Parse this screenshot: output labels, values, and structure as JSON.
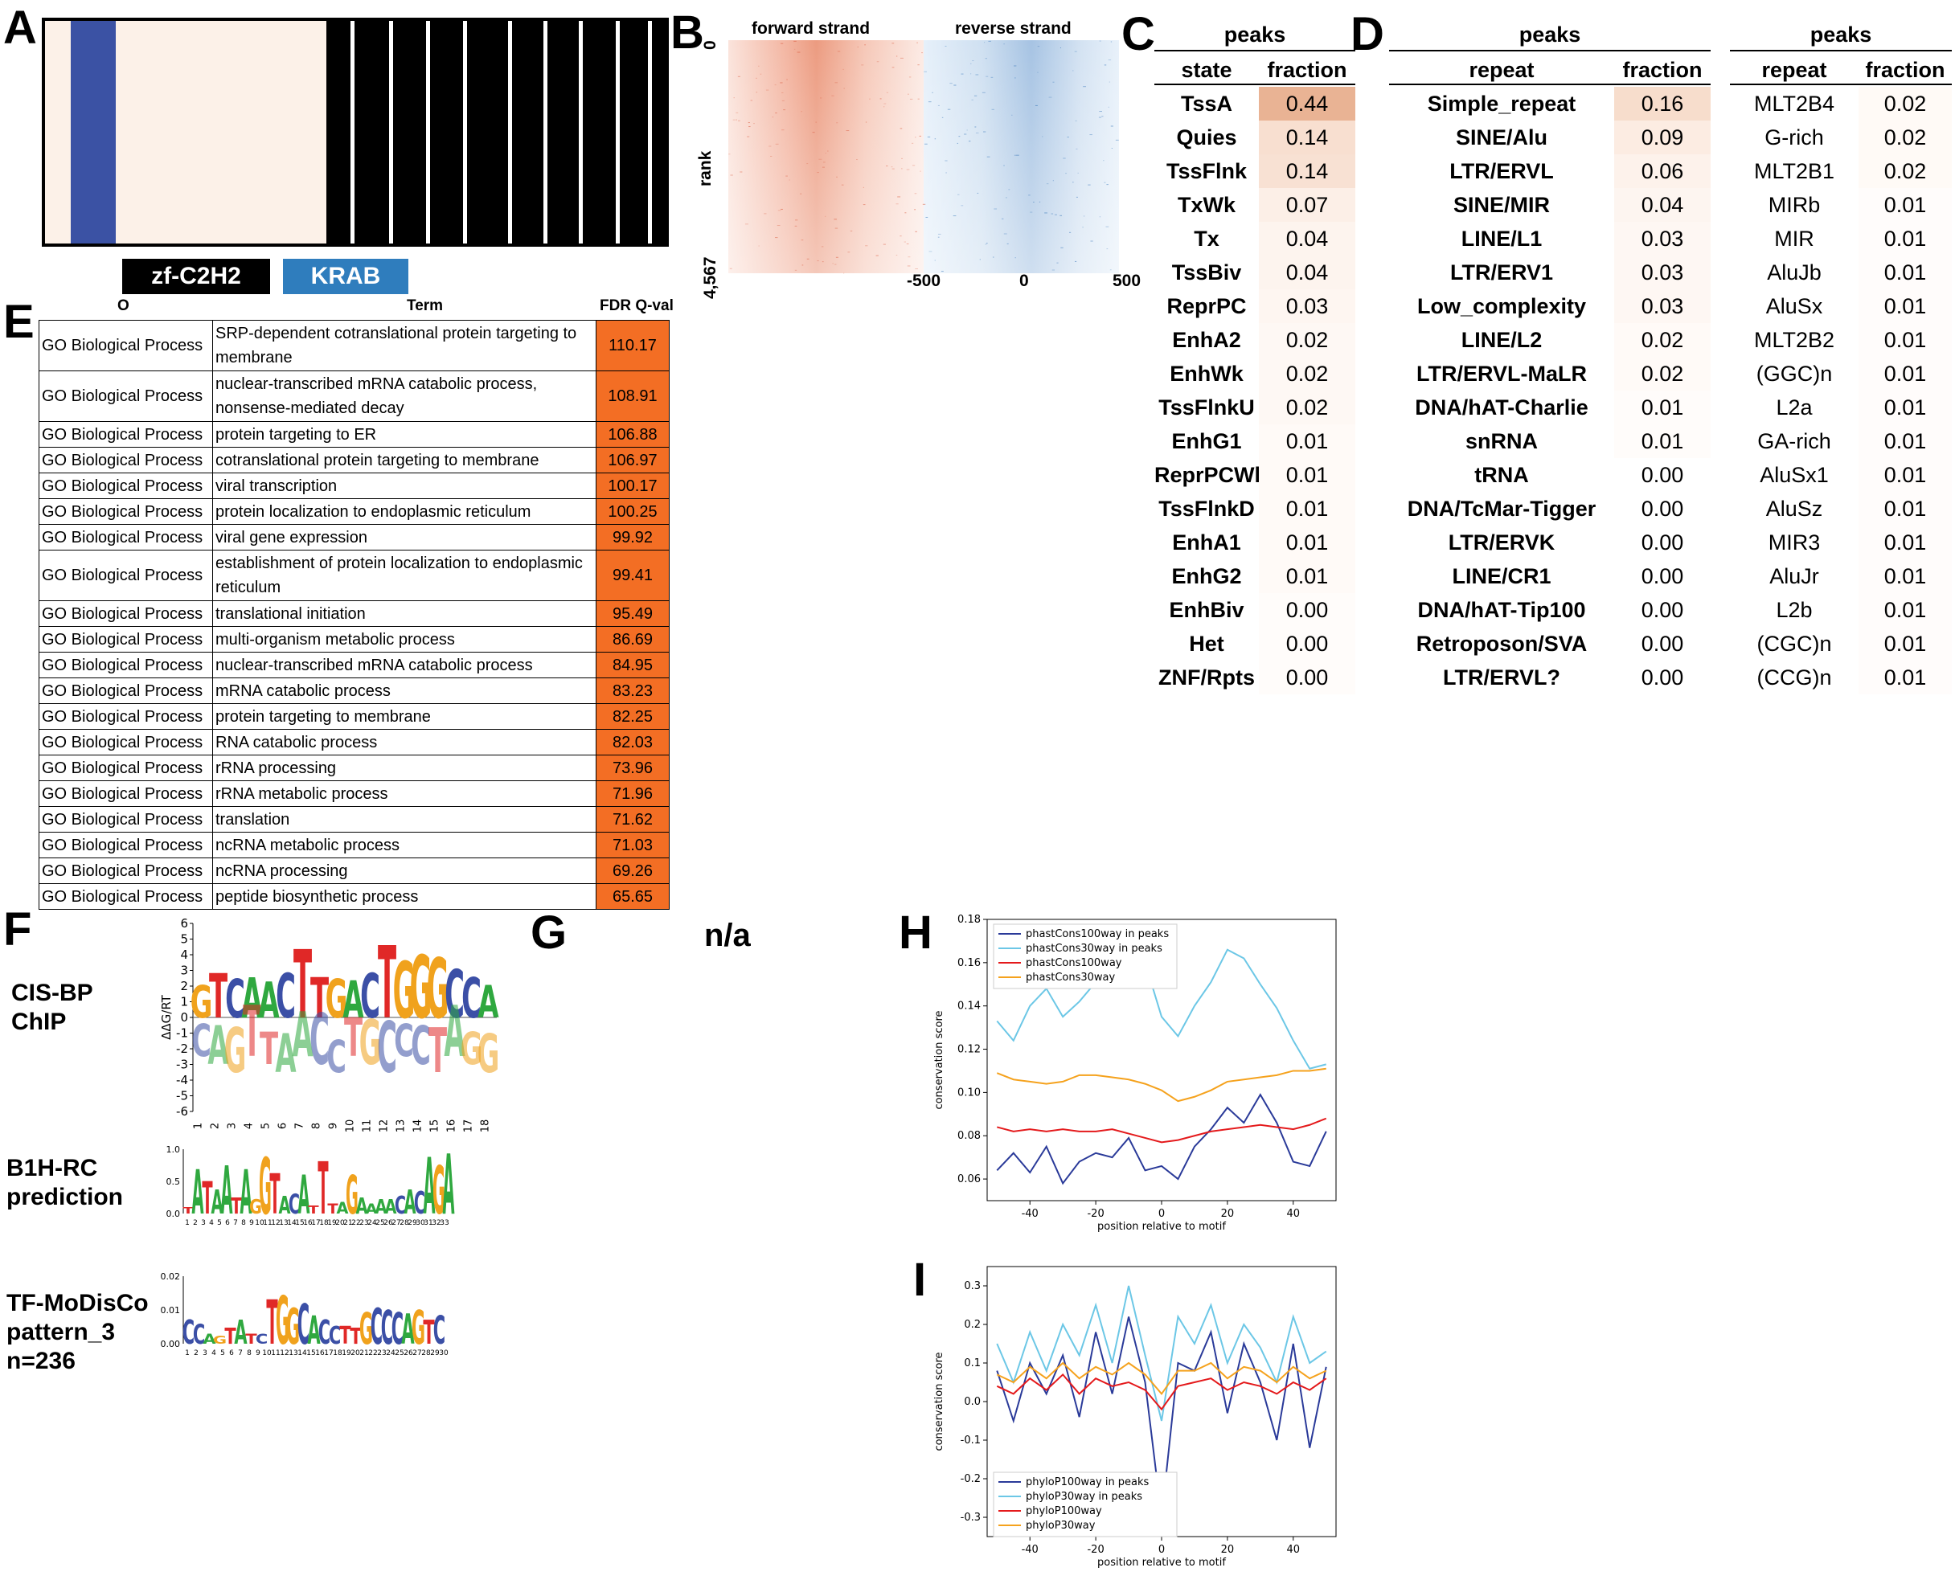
{
  "panel_labels": {
    "A": "A",
    "B": "B",
    "C": "C",
    "D": "D",
    "E": "E",
    "F": "F",
    "G": "G",
    "H": "H",
    "I": "I"
  },
  "panel_a": {
    "domains": [
      {
        "label": "zf-C2H2",
        "color": "#000000"
      },
      {
        "label": "KRAB",
        "color": "#2f7dbd"
      }
    ],
    "colors": {
      "background": "#fcf1e8",
      "krab_band": "#3b52a4",
      "zf_block": "#000000",
      "zf_separator": "#ffffff"
    }
  },
  "panel_b": {
    "headers": [
      "forward strand",
      "reverse strand"
    ],
    "y_label": "rank",
    "y_ticks": [
      "0",
      "4,567"
    ],
    "x_ticks": [
      "-500",
      "0",
      "500"
    ],
    "colors": {
      "forward": "#e3572f",
      "reverse": "#2e6fb5"
    }
  },
  "panel_c": {
    "title": "peaks",
    "columns": [
      "state",
      "fraction"
    ],
    "rows": [
      {
        "state": "TssA",
        "fraction": "0.44"
      },
      {
        "state": "Quies",
        "fraction": "0.14"
      },
      {
        "state": "TssFlnk",
        "fraction": "0.14"
      },
      {
        "state": "TxWk",
        "fraction": "0.07"
      },
      {
        "state": "Tx",
        "fraction": "0.04"
      },
      {
        "state": "TssBiv",
        "fraction": "0.04"
      },
      {
        "state": "ReprPC",
        "fraction": "0.03"
      },
      {
        "state": "EnhA2",
        "fraction": "0.02"
      },
      {
        "state": "EnhWk",
        "fraction": "0.02"
      },
      {
        "state": "TssFlnkU",
        "fraction": "0.02"
      },
      {
        "state": "EnhG1",
        "fraction": "0.01"
      },
      {
        "state": "ReprPCWk",
        "fraction": "0.01"
      },
      {
        "state": "TssFlnkD",
        "fraction": "0.01"
      },
      {
        "state": "EnhA1",
        "fraction": "0.01"
      },
      {
        "state": "EnhG2",
        "fraction": "0.01"
      },
      {
        "state": "EnhBiv",
        "fraction": "0.00"
      },
      {
        "state": "Het",
        "fraction": "0.00"
      },
      {
        "state": "ZNF/Rpts",
        "fraction": "0.00"
      }
    ]
  },
  "panel_d": {
    "title_left": "peaks",
    "title_right": "peaks",
    "columns": [
      "repeat",
      "fraction"
    ],
    "left_rows": [
      {
        "repeat": "Simple_repeat",
        "fraction": "0.16"
      },
      {
        "repeat": "SINE/Alu",
        "fraction": "0.09"
      },
      {
        "repeat": "LTR/ERVL",
        "fraction": "0.06"
      },
      {
        "repeat": "SINE/MIR",
        "fraction": "0.04"
      },
      {
        "repeat": "LINE/L1",
        "fraction": "0.03"
      },
      {
        "repeat": "LTR/ERV1",
        "fraction": "0.03"
      },
      {
        "repeat": "Low_complexity",
        "fraction": "0.03"
      },
      {
        "repeat": "LINE/L2",
        "fraction": "0.02"
      },
      {
        "repeat": "LTR/ERVL-MaLR",
        "fraction": "0.02"
      },
      {
        "repeat": "DNA/hAT-Charlie",
        "fraction": "0.01"
      },
      {
        "repeat": "snRNA",
        "fraction": "0.01"
      },
      {
        "repeat": "tRNA",
        "fraction": "0.00"
      },
      {
        "repeat": "DNA/TcMar-Tigger",
        "fraction": "0.00"
      },
      {
        "repeat": "LTR/ERVK",
        "fraction": "0.00"
      },
      {
        "repeat": "LINE/CR1",
        "fraction": "0.00"
      },
      {
        "repeat": "DNA/hAT-Tip100",
        "fraction": "0.00"
      },
      {
        "repeat": "Retroposon/SVA",
        "fraction": "0.00"
      },
      {
        "repeat": "LTR/ERVL?",
        "fraction": "0.00"
      }
    ],
    "right_rows": [
      {
        "repeat": "MLT2B4",
        "fraction": "0.02"
      },
      {
        "repeat": "G-rich",
        "fraction": "0.02"
      },
      {
        "repeat": "MLT2B1",
        "fraction": "0.02"
      },
      {
        "repeat": "MIRb",
        "fraction": "0.01"
      },
      {
        "repeat": "MIR",
        "fraction": "0.01"
      },
      {
        "repeat": "AluJb",
        "fraction": "0.01"
      },
      {
        "repeat": "AluSx",
        "fraction": "0.01"
      },
      {
        "repeat": "MLT2B2",
        "fraction": "0.01"
      },
      {
        "repeat": "(GGC)n",
        "fraction": "0.01"
      },
      {
        "repeat": "L2a",
        "fraction": "0.01"
      },
      {
        "repeat": "GA-rich",
        "fraction": "0.01"
      },
      {
        "repeat": "AluSx1",
        "fraction": "0.01"
      },
      {
        "repeat": "AluSz",
        "fraction": "0.01"
      },
      {
        "repeat": "MIR3",
        "fraction": "0.01"
      },
      {
        "repeat": "AluJr",
        "fraction": "0.01"
      },
      {
        "repeat": "L2b",
        "fraction": "0.01"
      },
      {
        "repeat": "(CGC)n",
        "fraction": "0.01"
      },
      {
        "repeat": "(CCG)n",
        "fraction": "0.01"
      }
    ]
  },
  "panel_e": {
    "headers": [
      "O",
      "Term",
      "FDR Q-val"
    ],
    "rows": [
      {
        "source": "GO Biological Process",
        "term": "SRP-dependent cotranslational protein targeting to membrane",
        "q": "110.17"
      },
      {
        "source": "GO Biological Process",
        "term": "nuclear-transcribed mRNA catabolic process, nonsense-mediated decay",
        "q": "108.91"
      },
      {
        "source": "GO Biological Process",
        "term": "protein targeting to ER",
        "q": "106.88"
      },
      {
        "source": "GO Biological Process",
        "term": "cotranslational protein targeting to membrane",
        "q": "106.97"
      },
      {
        "source": "GO Biological Process",
        "term": "viral transcription",
        "q": "100.17"
      },
      {
        "source": "GO Biological Process",
        "term": "protein localization to endoplasmic reticulum",
        "q": "100.25"
      },
      {
        "source": "GO Biological Process",
        "term": "viral gene expression",
        "q": "99.92"
      },
      {
        "source": "GO Biological Process",
        "term": "establishment of protein localization to endoplasmic reticulum",
        "q": "99.41"
      },
      {
        "source": "GO Biological Process",
        "term": "translational initiation",
        "q": "95.49"
      },
      {
        "source": "GO Biological Process",
        "term": "multi-organism metabolic process",
        "q": "86.69"
      },
      {
        "source": "GO Biological Process",
        "term": "nuclear-transcribed mRNA catabolic process",
        "q": "84.95"
      },
      {
        "source": "GO Biological Process",
        "term": "mRNA catabolic process",
        "q": "83.23"
      },
      {
        "source": "GO Biological Process",
        "term": "protein targeting to membrane",
        "q": "82.25"
      },
      {
        "source": "GO Biological Process",
        "term": "RNA catabolic process",
        "q": "82.03"
      },
      {
        "source": "GO Biological Process",
        "term": "rRNA processing",
        "q": "73.96"
      },
      {
        "source": "GO Biological Process",
        "term": "rRNA metabolic process",
        "q": "71.96"
      },
      {
        "source": "GO Biological Process",
        "term": "translation",
        "q": "71.62"
      },
      {
        "source": "GO Biological Process",
        "term": "ncRNA metabolic process",
        "q": "71.03"
      },
      {
        "source": "GO Biological Process",
        "term": "ncRNA processing",
        "q": "69.26"
      },
      {
        "source": "GO Biological Process",
        "term": "peptide biosynthetic process",
        "q": "65.65"
      }
    ]
  },
  "panel_f": {
    "motifs": [
      {
        "label_lines": [
          "CIS-BP",
          "ChIP"
        ],
        "y_label": "ΔΔG/RT",
        "y_ticks": [
          "6",
          "5",
          "4",
          "3",
          "2",
          "1",
          "0",
          "-1",
          "-2",
          "-3",
          "-4",
          "-5",
          "-6"
        ],
        "x_ticks": [
          "1",
          "2",
          "3",
          "4",
          "5",
          "6",
          "7",
          "8",
          "9",
          "10",
          "11",
          "12",
          "13",
          "14",
          "15",
          "16",
          "17",
          "18"
        ],
        "top_sequence": "GTCAACTTGACTGGGCCA",
        "bottom_sequence": "CAGTTAACCTGCCCTAGG"
      },
      {
        "label_lines": [
          "B1H-RC",
          "prediction"
        ],
        "y_ticks": [
          "1.0",
          "0.5",
          "0.0"
        ],
        "x_ticks": [
          "1",
          "2",
          "3",
          "4",
          "5",
          "6",
          "7",
          "8",
          "9",
          "10",
          "11",
          "12",
          "13",
          "14",
          "15",
          "16",
          "17",
          "18",
          "19",
          "20",
          "21",
          "22",
          "23",
          "24",
          "25",
          "26",
          "27",
          "28",
          "29",
          "30",
          "31",
          "32",
          "33"
        ],
        "sequence": "TATAATAGGTACATTTAGAAAACACAGA"
      },
      {
        "label_lines": [
          "TF-MoDisCo",
          "pattern_3",
          "n=236"
        ],
        "y_ticks": [
          "0.02",
          "0.01",
          "0.00"
        ],
        "x_ticks": [
          "1",
          "2",
          "3",
          "4",
          "5",
          "6",
          "7",
          "8",
          "9",
          "10",
          "11",
          "12",
          "13",
          "14",
          "15",
          "16",
          "17",
          "18",
          "19",
          "20",
          "21",
          "22",
          "23",
          "24",
          "25",
          "26",
          "27",
          "28",
          "29",
          "30"
        ],
        "sequence": "CCAGTATCTGGCACCTTGCCCAGTC"
      }
    ],
    "base_colors": {
      "A": "#2fa83f",
      "C": "#3b4fa6",
      "G": "#f0a21d",
      "T": "#e02827"
    }
  },
  "panel_g": {
    "text": "n/a"
  },
  "chart_data": [
    {
      "type": "line",
      "panel": "H",
      "xlabel": "position relative to motif",
      "ylabel": "conservation score",
      "xlim": [
        -53,
        53
      ],
      "ylim": [
        0.05,
        0.18
      ],
      "xticks": [
        "-40",
        "-20",
        "0",
        "20",
        "40"
      ],
      "yticks": [
        "0.06",
        "0.08",
        "0.10",
        "0.12",
        "0.14",
        "0.16",
        "0.18"
      ],
      "legend": "top-left",
      "x": [
        -50,
        -45,
        -40,
        -35,
        -30,
        -25,
        -20,
        -15,
        -10,
        -5,
        0,
        5,
        10,
        15,
        20,
        25,
        30,
        35,
        40,
        45,
        50
      ],
      "series": [
        {
          "name": "phastCons100way in peaks",
          "color": "#2a3a99",
          "values": [
            0.064,
            0.072,
            0.063,
            0.075,
            0.058,
            0.068,
            0.072,
            0.07,
            0.079,
            0.064,
            0.066,
            0.06,
            0.075,
            0.083,
            0.093,
            0.086,
            0.099,
            0.086,
            0.068,
            0.066,
            0.082
          ]
        },
        {
          "name": "phastCons30way in peaks",
          "color": "#6cc7e6",
          "values": [
            0.133,
            0.124,
            0.14,
            0.148,
            0.135,
            0.142,
            0.151,
            0.158,
            0.152,
            0.16,
            0.135,
            0.126,
            0.14,
            0.151,
            0.166,
            0.162,
            0.15,
            0.139,
            0.124,
            0.111,
            0.113
          ]
        },
        {
          "name": "phastCons100way",
          "color": "#e41a1c",
          "values": [
            0.084,
            0.082,
            0.083,
            0.082,
            0.083,
            0.082,
            0.082,
            0.083,
            0.081,
            0.079,
            0.077,
            0.078,
            0.08,
            0.082,
            0.083,
            0.084,
            0.085,
            0.084,
            0.083,
            0.085,
            0.088
          ]
        },
        {
          "name": "phastCons30way",
          "color": "#f5a21d",
          "values": [
            0.109,
            0.106,
            0.105,
            0.104,
            0.105,
            0.108,
            0.108,
            0.107,
            0.106,
            0.104,
            0.101,
            0.096,
            0.098,
            0.101,
            0.105,
            0.106,
            0.107,
            0.108,
            0.11,
            0.11,
            0.111
          ]
        }
      ]
    },
    {
      "type": "line",
      "panel": "I",
      "xlabel": "position relative to motif",
      "ylabel": "conservation score",
      "xlim": [
        -53,
        53
      ],
      "ylim": [
        -0.35,
        0.35
      ],
      "xticks": [
        "-40",
        "-20",
        "0",
        "20",
        "40"
      ],
      "yticks": [
        "-0.3",
        "-0.2",
        "-0.1",
        "0.0",
        "0.1",
        "0.2",
        "0.3"
      ],
      "legend": "bottom-left",
      "x": [
        -50,
        -45,
        -40,
        -35,
        -30,
        -25,
        -20,
        -15,
        -10,
        -5,
        0,
        5,
        10,
        15,
        20,
        25,
        30,
        35,
        40,
        45,
        50
      ],
      "series": [
        {
          "name": "phyloP100way in peaks",
          "color": "#2a3a99",
          "values": [
            0.08,
            -0.05,
            0.1,
            0.02,
            0.12,
            -0.04,
            0.18,
            0.02,
            0.22,
            0.05,
            -0.3,
            0.1,
            0.08,
            0.18,
            -0.03,
            0.15,
            0.05,
            -0.1,
            0.15,
            -0.12,
            0.09
          ]
        },
        {
          "name": "phyloP30way in peaks",
          "color": "#6cc7e6",
          "values": [
            0.15,
            0.05,
            0.18,
            0.08,
            0.2,
            0.12,
            0.25,
            0.1,
            0.3,
            0.12,
            -0.05,
            0.22,
            0.15,
            0.25,
            0.1,
            0.2,
            0.14,
            0.05,
            0.22,
            0.1,
            0.13
          ]
        },
        {
          "name": "phyloP100way",
          "color": "#e41a1c",
          "values": [
            0.04,
            0.02,
            0.06,
            0.03,
            0.07,
            0.02,
            0.06,
            0.04,
            0.05,
            0.03,
            -0.02,
            0.04,
            0.05,
            0.06,
            0.03,
            0.05,
            0.04,
            0.02,
            0.05,
            0.03,
            0.06
          ]
        },
        {
          "name": "phyloP30way",
          "color": "#f5a21d",
          "values": [
            0.07,
            0.05,
            0.09,
            0.06,
            0.1,
            0.06,
            0.09,
            0.07,
            0.1,
            0.07,
            0.02,
            0.08,
            0.08,
            0.1,
            0.06,
            0.09,
            0.08,
            0.05,
            0.09,
            0.06,
            0.08
          ]
        }
      ]
    }
  ]
}
